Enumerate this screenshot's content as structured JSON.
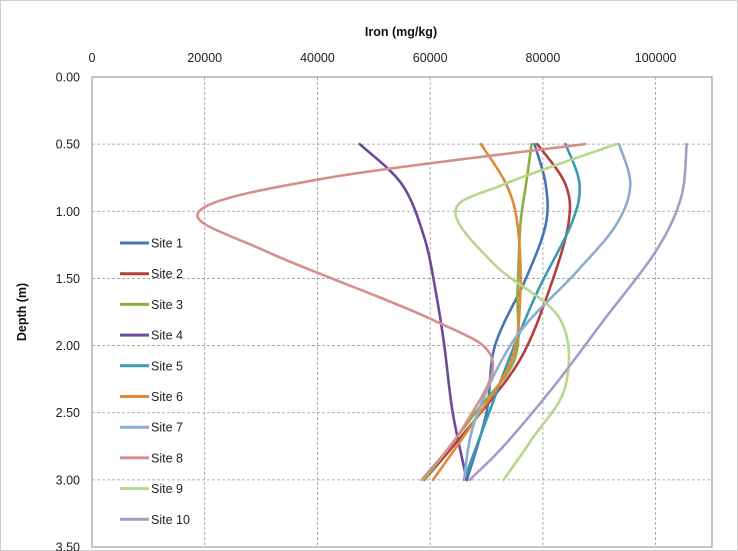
{
  "chart_data": {
    "type": "line",
    "title": "",
    "xlabel": "Iron (mg/kg)",
    "ylabel": "Depth (m)",
    "x_axis_position": "top",
    "y_axis_reversed": true,
    "xlim": [
      0,
      110000
    ],
    "ylim": [
      0,
      3.5
    ],
    "x_ticks": [
      0,
      20000,
      40000,
      60000,
      80000,
      100000
    ],
    "x_tick_labels": [
      "0",
      "20000",
      "40000",
      "60000",
      "80000",
      "100000"
    ],
    "y_ticks": [
      0,
      0.5,
      1.0,
      1.5,
      2.0,
      2.5,
      3.0,
      3.5
    ],
    "y_tick_labels": [
      "0.00",
      "0.50",
      "1.00",
      "1.50",
      "2.00",
      "2.50",
      "3.00",
      "3.50"
    ],
    "grid": "dashed major gridlines",
    "legend_position": "left-inside",
    "series": [
      {
        "name": "Site 1",
        "color": "#4a72b8",
        "points": [
          [
            78500,
            0.5
          ],
          [
            80500,
            0.8
          ],
          [
            80500,
            1.1
          ],
          [
            77000,
            1.5
          ],
          [
            71500,
            2.0
          ],
          [
            70000,
            2.5
          ],
          [
            66500,
            3.0
          ]
        ]
      },
      {
        "name": "Site 2",
        "color": "#b3403d",
        "points": [
          [
            79000,
            0.5
          ],
          [
            84000,
            0.8
          ],
          [
            84500,
            1.1
          ],
          [
            81000,
            1.6
          ],
          [
            76000,
            2.1
          ],
          [
            68000,
            2.55
          ],
          [
            59000,
            3.0
          ]
        ]
      },
      {
        "name": "Site 3",
        "color": "#8aae44",
        "points": [
          [
            78000,
            0.5
          ],
          [
            77000,
            0.8
          ],
          [
            76000,
            1.1
          ],
          [
            75500,
            1.6
          ],
          [
            75000,
            2.1
          ],
          [
            68000,
            2.5
          ],
          [
            59000,
            3.0
          ]
        ]
      },
      {
        "name": "Site 4",
        "color": "#6d4a98",
        "points": [
          [
            47500,
            0.5
          ],
          [
            55000,
            0.8
          ],
          [
            59000,
            1.2
          ],
          [
            61000,
            1.6
          ],
          [
            62500,
            2.0
          ],
          [
            64000,
            2.5
          ],
          [
            66500,
            3.0
          ]
        ]
      },
      {
        "name": "Site 5",
        "color": "#3b9aad",
        "points": [
          [
            84000,
            0.5
          ],
          [
            86500,
            0.8
          ],
          [
            85000,
            1.1
          ],
          [
            79000,
            1.6
          ],
          [
            74000,
            2.1
          ],
          [
            70000,
            2.55
          ],
          [
            66000,
            3.0
          ]
        ]
      },
      {
        "name": "Site 6",
        "color": "#e2893a",
        "points": [
          [
            69000,
            0.5
          ],
          [
            73500,
            0.8
          ],
          [
            75500,
            1.1
          ],
          [
            76000,
            1.6
          ],
          [
            74500,
            2.1
          ],
          [
            68000,
            2.55
          ],
          [
            60500,
            3.0
          ]
        ]
      },
      {
        "name": "Site 7",
        "color": "#8cadd1",
        "points": [
          [
            93500,
            0.5
          ],
          [
            95500,
            0.8
          ],
          [
            93000,
            1.1
          ],
          [
            86000,
            1.45
          ],
          [
            75000,
            1.95
          ],
          [
            68000,
            2.55
          ],
          [
            66000,
            3.0
          ]
        ]
      },
      {
        "name": "Site 8",
        "color": "#d58f8d",
        "points": [
          [
            87500,
            0.5
          ],
          [
            42000,
            0.75
          ],
          [
            19000,
            1.0
          ],
          [
            31000,
            1.3
          ],
          [
            60000,
            1.8
          ],
          [
            71000,
            2.1
          ],
          [
            66000,
            2.6
          ],
          [
            58500,
            3.0
          ]
        ]
      },
      {
        "name": "Site 9",
        "color": "#b8d78a",
        "points": [
          [
            93000,
            0.5
          ],
          [
            73000,
            0.8
          ],
          [
            64500,
            1.0
          ],
          [
            71500,
            1.4
          ],
          [
            83000,
            1.8
          ],
          [
            84000,
            2.3
          ],
          [
            78000,
            2.7
          ],
          [
            73000,
            3.0
          ]
        ]
      },
      {
        "name": "Site 10",
        "color": "#a99ac8",
        "points": [
          [
            105500,
            0.5
          ],
          [
            104500,
            0.9
          ],
          [
            100000,
            1.3
          ],
          [
            91000,
            1.8
          ],
          [
            82000,
            2.3
          ],
          [
            73000,
            2.75
          ],
          [
            67000,
            3.0
          ]
        ]
      }
    ]
  }
}
